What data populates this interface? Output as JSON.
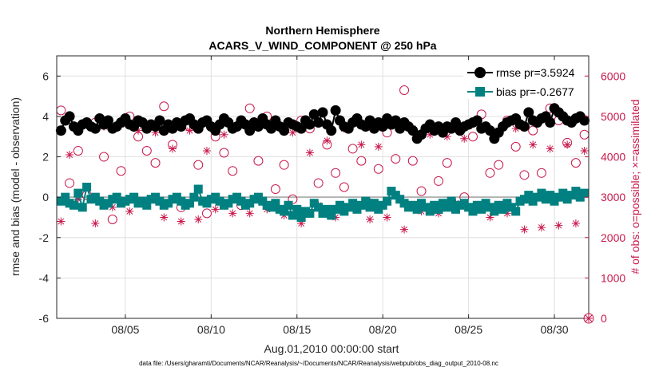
{
  "chart_data": {
    "type": "line",
    "title_line1": "Northern Hemisphere",
    "title_line2": "ACARS_V_WIND_COMPONENT @ 250 hPa",
    "xlabel": "Aug.01,2010 00:00:00 start",
    "ylabel_left": "rmse and bias (model - observation)",
    "ylabel_right": "# of obs: o=possible; ×=assimilated",
    "footer": "data file: /Users/gharamti/Documents/NCAR/Reanalysis/~/Documents/NCAR/Reanalysis/webpub/obs_diag_output_2010-08.nc",
    "xlim": [
      1,
      32
    ],
    "ylim_left": [
      -6,
      7
    ],
    "ylim_right": [
      0,
      6500
    ],
    "x_ticks": [
      5,
      10,
      15,
      20,
      25,
      30
    ],
    "x_tick_labels": [
      "08/05",
      "08/10",
      "08/15",
      "08/20",
      "08/25",
      "08/30"
    ],
    "y_ticks_left": [
      -6,
      -4,
      -2,
      0,
      2,
      4,
      6
    ],
    "y_ticks_left_labels": [
      "-6",
      "-4",
      "-2",
      "0",
      "2",
      "4",
      "6"
    ],
    "y_ticks_right": [
      0,
      1000,
      2000,
      3000,
      4000,
      5000,
      6000
    ],
    "y_ticks_right_labels": [
      "0",
      "1000",
      "2000",
      "3000",
      "4000",
      "5000",
      "6000"
    ],
    "grid": true,
    "legend_position": "top-right",
    "colors": {
      "rmse": "#000000",
      "bias": "#008080",
      "obs": "#c8194b",
      "zero_line": "#b3b3b3"
    },
    "series": [
      {
        "name": "rmse pr=3.5924",
        "x": [
          1.25,
          1.5,
          1.75,
          2.0,
          2.25,
          2.5,
          2.75,
          3.0,
          3.25,
          3.5,
          3.75,
          4.0,
          4.25,
          4.5,
          4.75,
          5.0,
          5.25,
          5.5,
          5.75,
          6.0,
          6.25,
          6.5,
          6.75,
          7.0,
          7.25,
          7.5,
          7.75,
          8.0,
          8.25,
          8.5,
          8.75,
          9.0,
          9.25,
          9.5,
          9.75,
          10.0,
          10.25,
          10.5,
          10.75,
          11.0,
          11.25,
          11.5,
          11.75,
          12.0,
          12.25,
          12.5,
          12.75,
          13.0,
          13.25,
          13.5,
          13.75,
          14.0,
          14.25,
          14.5,
          14.75,
          15.0,
          15.25,
          15.5,
          15.75,
          16.0,
          16.25,
          16.5,
          16.75,
          17.0,
          17.25,
          17.5,
          17.75,
          18.0,
          18.25,
          18.5,
          18.75,
          19.0,
          19.25,
          19.5,
          19.75,
          20.0,
          20.25,
          20.5,
          20.75,
          21.0,
          21.25,
          21.5,
          21.75,
          22.0,
          22.25,
          22.5,
          22.75,
          23.0,
          23.25,
          23.5,
          23.75,
          24.0,
          24.25,
          24.5,
          24.75,
          25.0,
          25.25,
          25.5,
          25.75,
          26.0,
          26.25,
          26.5,
          26.75,
          27.0,
          27.25,
          27.5,
          27.75,
          28.0,
          28.25,
          28.5,
          28.75,
          29.0,
          29.25,
          29.5,
          29.75,
          30.0,
          30.25,
          30.5,
          30.75,
          31.0,
          31.25,
          31.5,
          31.75
        ],
        "y": [
          3.3,
          3.8,
          4.0,
          3.5,
          3.3,
          3.6,
          3.7,
          3.5,
          3.4,
          3.9,
          3.6,
          3.8,
          3.4,
          3.5,
          3.7,
          3.9,
          3.6,
          3.5,
          3.8,
          3.7,
          3.4,
          3.6,
          3.5,
          3.8,
          3.3,
          3.6,
          3.4,
          3.7,
          3.5,
          3.8,
          3.9,
          3.6,
          3.4,
          3.7,
          3.8,
          3.5,
          3.3,
          3.6,
          3.9,
          3.7,
          3.4,
          3.5,
          3.8,
          3.6,
          3.3,
          3.7,
          3.5,
          3.9,
          3.6,
          3.4,
          3.8,
          3.5,
          3.3,
          3.7,
          3.6,
          3.5,
          3.4,
          3.8,
          3.6,
          4.1,
          3.7,
          4.2,
          3.6,
          3.3,
          4.3,
          3.8,
          3.5,
          3.4,
          3.7,
          3.9,
          3.6,
          3.5,
          3.8,
          3.4,
          3.7,
          3.5,
          3.9,
          3.6,
          3.8,
          3.4,
          3.7,
          3.5,
          3.3,
          2.9,
          3.1,
          3.4,
          3.6,
          3.3,
          3.5,
          3.2,
          3.5,
          3.4,
          3.7,
          3.3,
          3.5,
          3.6,
          3.7,
          3.8,
          3.4,
          3.5,
          3.3,
          2.9,
          3.2,
          3.5,
          3.7,
          3.8,
          3.9,
          3.6,
          3.5,
          4.2,
          3.8,
          3.7,
          3.9,
          4.0,
          3.7,
          4.4,
          4.2,
          4.0,
          3.8,
          3.7,
          3.9,
          4.0,
          3.8
        ],
        "color": "#000000"
      },
      {
        "name": "bias pr=-0.2677",
        "x": [
          1.25,
          1.5,
          1.75,
          2.0,
          2.25,
          2.5,
          2.75,
          3.0,
          3.25,
          3.5,
          3.75,
          4.0,
          4.25,
          4.5,
          4.75,
          5.0,
          5.25,
          5.5,
          5.75,
          6.0,
          6.25,
          6.5,
          6.75,
          7.0,
          7.25,
          7.5,
          7.75,
          8.0,
          8.25,
          8.5,
          8.75,
          9.0,
          9.25,
          9.5,
          9.75,
          10.0,
          10.25,
          10.5,
          10.75,
          11.0,
          11.25,
          11.5,
          11.75,
          12.0,
          12.25,
          12.5,
          12.75,
          13.0,
          13.25,
          13.5,
          13.75,
          14.0,
          14.25,
          14.5,
          14.75,
          15.0,
          15.25,
          15.5,
          15.75,
          16.0,
          16.25,
          16.5,
          16.75,
          17.0,
          17.25,
          17.5,
          17.75,
          18.0,
          18.25,
          18.5,
          18.75,
          19.0,
          19.25,
          19.5,
          19.75,
          20.0,
          20.25,
          20.5,
          20.75,
          21.0,
          21.25,
          21.5,
          21.75,
          22.0,
          22.25,
          22.5,
          22.75,
          23.0,
          23.25,
          23.5,
          23.75,
          24.0,
          24.25,
          24.5,
          24.75,
          25.0,
          25.25,
          25.5,
          25.75,
          26.0,
          26.25,
          26.5,
          26.75,
          27.0,
          27.25,
          27.5,
          27.75,
          28.0,
          28.25,
          28.5,
          28.75,
          29.0,
          29.25,
          29.5,
          29.75,
          30.0,
          30.25,
          30.5,
          30.75,
          31.0,
          31.25,
          31.5,
          31.75
        ],
        "y": [
          -0.2,
          0.0,
          -0.3,
          -0.4,
          0.2,
          -0.5,
          0.5,
          -0.1,
          0.0,
          -0.2,
          -0.4,
          -0.3,
          -0.1,
          0.0,
          -0.3,
          -0.2,
          -0.1,
          0.0,
          -0.3,
          -0.2,
          -0.4,
          -0.1,
          0.0,
          -0.2,
          -0.4,
          -0.3,
          -0.1,
          0.0,
          -0.2,
          -0.4,
          -0.3,
          0.0,
          0.4,
          -0.2,
          -0.3,
          -0.1,
          0.0,
          -0.2,
          -0.4,
          -0.3,
          -0.1,
          0.0,
          -0.2,
          -0.4,
          -0.3,
          -0.1,
          0.0,
          -0.2,
          -0.4,
          -0.5,
          -0.3,
          -0.6,
          -0.7,
          -0.4,
          -0.9,
          -0.6,
          -1.0,
          -0.7,
          -0.8,
          -0.3,
          -0.5,
          -0.8,
          -0.6,
          -0.9,
          -0.6,
          -0.4,
          -0.7,
          -0.5,
          -0.3,
          -0.6,
          -0.4,
          -0.2,
          -0.5,
          -0.3,
          -0.6,
          -0.4,
          -0.2,
          0.3,
          0.1,
          -0.1,
          -0.3,
          -0.5,
          -0.4,
          -0.6,
          -0.3,
          -0.5,
          -0.7,
          -0.4,
          -0.6,
          -0.3,
          -0.5,
          -0.2,
          -0.6,
          -0.4,
          -0.3,
          -0.5,
          -0.7,
          -0.4,
          -0.6,
          -0.3,
          -0.5,
          -0.7,
          -0.4,
          -0.6,
          -0.3,
          -0.5,
          -0.7,
          -0.2,
          -0.1,
          0.1,
          -0.2,
          0.0,
          0.2,
          -0.1,
          0.1,
          -0.2,
          0.0,
          0.2,
          -0.1,
          0.1,
          0.3,
          0.0,
          0.2
        ],
        "color": "#008080"
      },
      {
        "name": "",
        "marker": "circle",
        "axis": "right",
        "x": [
          1.25,
          1.75,
          2.25,
          2.75,
          3.25,
          3.75,
          4.25,
          4.75,
          5.25,
          5.75,
          6.25,
          6.75,
          7.25,
          7.75,
          8.25,
          8.75,
          9.25,
          9.75,
          10.25,
          10.75,
          11.25,
          11.75,
          12.25,
          12.75,
          13.25,
          13.75,
          14.25,
          14.75,
          15.25,
          15.75,
          16.25,
          16.75,
          17.25,
          17.75,
          18.25,
          18.75,
          19.25,
          19.75,
          20.25,
          20.75,
          21.25,
          21.75,
          22.25,
          22.75,
          23.25,
          23.75,
          24.25,
          24.75,
          25.25,
          25.75,
          26.25,
          26.75,
          27.25,
          27.75,
          28.25,
          28.75,
          29.25,
          29.75,
          30.25,
          30.75,
          31.25,
          31.75
        ],
        "y": [
          5150,
          3350,
          4150,
          3050,
          4850,
          4000,
          2450,
          3650,
          5000,
          4500,
          4150,
          3850,
          5250,
          4300,
          2750,
          4750,
          3800,
          2600,
          4500,
          4100,
          3650,
          2800,
          5200,
          3900,
          5000,
          3200,
          3800,
          2950,
          4900,
          4700,
          3350,
          4300,
          3600,
          3250,
          4200,
          3900,
          2850,
          3700,
          4600,
          3950,
          5650,
          3900,
          3150,
          2700,
          3400,
          3850,
          4750,
          3000,
          4500,
          5050,
          3600,
          3800,
          4900,
          4250,
          3550,
          4650,
          3600,
          5200,
          4900,
          4350,
          3850,
          4550
        ],
        "color": "#c8194b"
      },
      {
        "name": "",
        "marker": "asterisk",
        "axis": "right",
        "x": [
          1.25,
          1.75,
          2.25,
          2.75,
          3.25,
          3.75,
          4.25,
          4.75,
          5.25,
          5.75,
          6.25,
          6.75,
          7.25,
          7.75,
          8.25,
          8.75,
          9.25,
          9.75,
          10.25,
          10.75,
          11.25,
          11.75,
          12.25,
          12.75,
          13.25,
          13.75,
          14.25,
          14.75,
          15.25,
          15.75,
          16.25,
          16.75,
          17.25,
          17.75,
          18.25,
          18.75,
          19.25,
          19.75,
          20.25,
          20.75,
          21.25,
          21.75,
          22.25,
          22.75,
          23.25,
          23.75,
          24.25,
          24.75,
          25.25,
          25.75,
          26.25,
          26.75,
          27.25,
          27.75,
          28.25,
          28.75,
          29.25,
          29.75,
          30.25,
          30.75,
          31.25,
          31.75
        ],
        "y": [
          2400,
          4050,
          2950,
          4800,
          2350,
          4750,
          2750,
          4800,
          2650,
          4650,
          2800,
          4600,
          2500,
          4200,
          2400,
          4650,
          2450,
          4150,
          2700,
          4550,
          2600,
          4800,
          2600,
          4850,
          2700,
          4850,
          2550,
          4600,
          2350,
          4100,
          2800,
          4400,
          2500,
          4700,
          2750,
          4300,
          2450,
          4250,
          2500,
          4750,
          2200,
          4700,
          2650,
          4550,
          2600,
          4500,
          2850,
          4450,
          2750,
          4750,
          2500,
          4650,
          2600,
          4700,
          2200,
          4300,
          2250,
          4200,
          2300,
          4300,
          2350,
          4150
        ],
        "color": "#c8194b"
      }
    ]
  }
}
